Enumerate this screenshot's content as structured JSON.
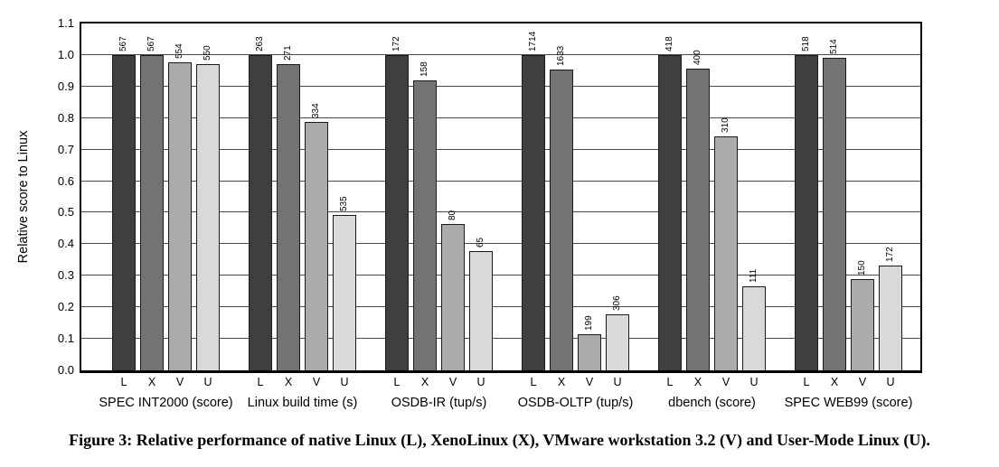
{
  "figure": {
    "caption": "Figure 3: Relative performance of native Linux (L), XenoLinux (X), VMware workstation 3.2 (V) and User-Mode Linux (U)."
  },
  "chart_data": {
    "type": "bar",
    "title": "",
    "xlabel": "",
    "ylabel": "Relative score to Linux",
    "ylim": [
      0.0,
      1.1
    ],
    "ytick_step": 0.1,
    "yticks": [
      "0.0",
      "0.1",
      "0.2",
      "0.3",
      "0.4",
      "0.5",
      "0.6",
      "0.7",
      "0.8",
      "0.9",
      "1.0",
      "1.1"
    ],
    "grid": "horizontal",
    "legend": "none",
    "series_letters": [
      "L",
      "X",
      "V",
      "U"
    ],
    "series_full_names": [
      "native Linux (L)",
      "XenoLinux (X)",
      "VMware workstation 3.2 (V)",
      "User-Mode Linux (U)"
    ],
    "bar_colors": [
      "#3f3f3f",
      "#737373",
      "#ababab",
      "#d9d9d9"
    ],
    "bar_border_color": "#1a1a1a",
    "groups": [
      {
        "label": "SPEC INT2000 (score)",
        "bar_labels": [
          "567",
          "567",
          "554",
          "550"
        ],
        "values_relative": [
          1.0,
          1.0,
          0.977,
          0.97
        ]
      },
      {
        "label": "Linux build time (s)",
        "bar_labels": [
          "263",
          "271",
          "334",
          "535"
        ],
        "values_relative": [
          1.0,
          0.97,
          0.787,
          0.492
        ]
      },
      {
        "label": "OSDB-IR (tup/s)",
        "bar_labels": [
          "172",
          "158",
          "80",
          "65"
        ],
        "values_relative": [
          1.0,
          0.919,
          0.465,
          0.378
        ]
      },
      {
        "label": "OSDB-OLTP (tup/s)",
        "bar_labels": [
          "1714",
          "1633",
          "199",
          "306"
        ],
        "values_relative": [
          1.0,
          0.953,
          0.116,
          0.179
        ]
      },
      {
        "label": "dbench (score)",
        "bar_labels": [
          "418",
          "400",
          "310",
          "111"
        ],
        "values_relative": [
          1.0,
          0.957,
          0.742,
          0.266
        ]
      },
      {
        "label": "SPEC WEB99 (score)",
        "bar_labels": [
          "518",
          "514",
          "150",
          "172"
        ],
        "values_relative": [
          1.0,
          0.992,
          0.29,
          0.332
        ]
      }
    ]
  }
}
